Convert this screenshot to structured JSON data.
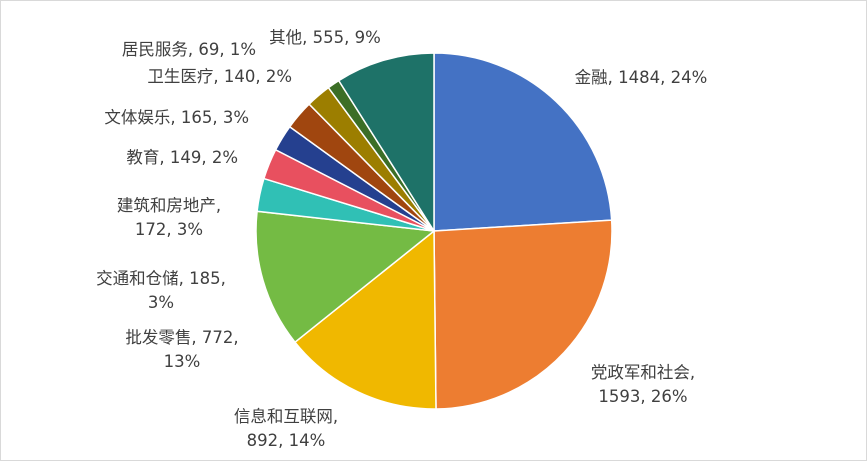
{
  "chart_data": {
    "type": "pie",
    "start_angle_deg": 0,
    "direction": "clockwise",
    "slices": [
      {
        "label": "金融",
        "value": 1484,
        "percent": "24%",
        "color": "#4472C4",
        "text_lines": [
          "金融, 1484, 24%"
        ]
      },
      {
        "label": "党政军和社会",
        "value": 1593,
        "percent": "26%",
        "color": "#ED7D31",
        "text_lines": [
          "党政军和社会,",
          "1593, 26%"
        ]
      },
      {
        "label": "信息和互联网",
        "value": 892,
        "percent": "14%",
        "color": "#F0B800",
        "text_lines": [
          "信息和互联网,",
          "892, 14%"
        ]
      },
      {
        "label": "批发零售",
        "value": 772,
        "percent": "13%",
        "color": "#74BB44",
        "text_lines": [
          "批发零售, 772,",
          "13%"
        ]
      },
      {
        "label": "交通和仓储",
        "value": 185,
        "percent": "3%",
        "color": "#30C0B5",
        "text_lines": [
          "交通和仓储, 185,",
          "3%"
        ]
      },
      {
        "label": "建筑和房地产",
        "value": 172,
        "percent": "3%",
        "color": "#E8505F",
        "text_lines": [
          "建筑和房地产,",
          "172, 3%"
        ]
      },
      {
        "label": "教育",
        "value": 149,
        "percent": "2%",
        "color": "#25408F",
        "text_lines": [
          "教育, 149, 2%"
        ]
      },
      {
        "label": "文体娱乐",
        "value": 165,
        "percent": "3%",
        "color": "#A0460F",
        "text_lines": [
          "文体娱乐, 165, 3%"
        ]
      },
      {
        "label": "卫生医疗",
        "value": 140,
        "percent": "2%",
        "color": "#9C7E00",
        "text_lines": [
          "卫生医疗, 140, 2%"
        ]
      },
      {
        "label": "居民服务",
        "value": 69,
        "percent": "1%",
        "color": "#3C6E26",
        "text_lines": [
          "居民服务, 69, 1%"
        ]
      },
      {
        "label": "其他",
        "value": 555,
        "percent": "9%",
        "color": "#1E7268",
        "text_lines": [
          "其他, 555, 9%"
        ]
      }
    ]
  }
}
